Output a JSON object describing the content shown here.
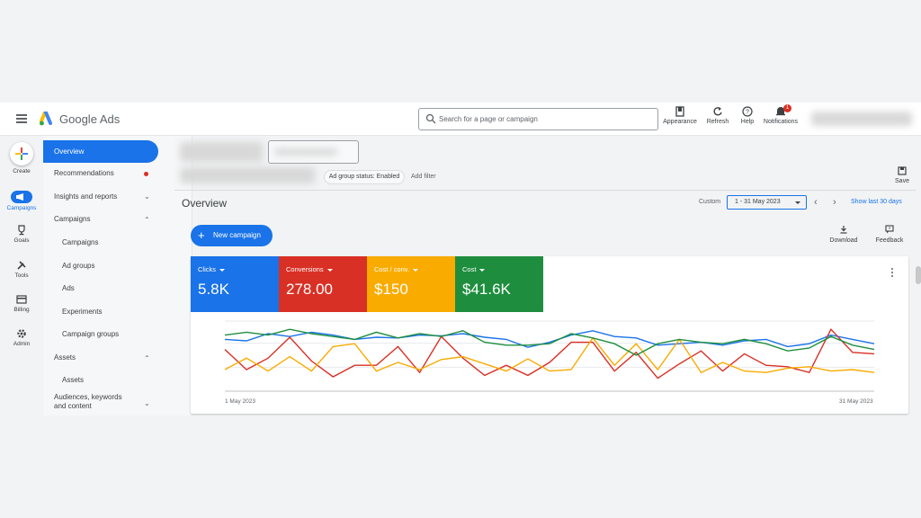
{
  "app": {
    "title": "Google Ads",
    "search_placeholder": "Search for a page or campaign"
  },
  "top_actions": [
    {
      "label": "Appearance",
      "icon": "appearance-icon"
    },
    {
      "label": "Refresh",
      "icon": "refresh-icon"
    },
    {
      "label": "Help",
      "icon": "help-icon"
    },
    {
      "label": "Notifications",
      "icon": "bell-icon",
      "badge": "1"
    }
  ],
  "rail": [
    {
      "label": "Create",
      "icon": "plus-icon"
    },
    {
      "label": "Campaigns",
      "icon": "megaphone-icon"
    },
    {
      "label": "Goals",
      "icon": "trophy-icon"
    },
    {
      "label": "Tools",
      "icon": "tools-icon"
    },
    {
      "label": "Billing",
      "icon": "card-icon"
    },
    {
      "label": "Admin",
      "icon": "gear-icon"
    }
  ],
  "nav": {
    "overview": "Overview",
    "recommendations": "Recommendations",
    "insights": "Insights and reports",
    "campaigns_section": "Campaigns",
    "campaigns": "Campaigns",
    "ad_groups": "Ad groups",
    "ads": "Ads",
    "experiments": "Experiments",
    "campaign_groups": "Campaign groups",
    "assets_section": "Assets",
    "assets": "Assets",
    "audiences": "Audiences, keywords and content"
  },
  "filters": {
    "chip": "Ad group status: Enabled",
    "add_filter": "Add filter",
    "save": "Save"
  },
  "overview": {
    "title": "Overview",
    "custom_label": "Custom",
    "date_range": "1 - 31 May 2023",
    "show_last": "Show last 30 days",
    "new_campaign": "New campaign",
    "download": "Download",
    "feedback": "Feedback"
  },
  "metrics": [
    {
      "label": "Clicks",
      "value": "5.8K",
      "color": "#1a73e8"
    },
    {
      "label": "Conversions",
      "value": "278.00",
      "color": "#d93025"
    },
    {
      "label": "Cost / conv.",
      "value": "$150",
      "color": "#f9ab00"
    },
    {
      "label": "Cost",
      "value": "$41.6K",
      "color": "#1e8e3e"
    }
  ],
  "chart_data": {
    "type": "line",
    "x_start_label": "1 May 2023",
    "x_end_label": "31 May 2023",
    "series": [
      {
        "name": "Clicks",
        "color": "#1a73e8",
        "values": [
          72,
          70,
          80,
          76,
          82,
          78,
          72,
          75,
          74,
          78,
          77,
          80,
          75,
          72,
          61,
          68,
          78,
          84,
          76,
          74,
          64,
          66,
          68,
          64,
          70,
          72,
          62,
          66,
          78,
          72,
          66
        ]
      },
      {
        "name": "Conversions",
        "color": "#d93025",
        "values": [
          58,
          30,
          46,
          75,
          42,
          20,
          36,
          36,
          62,
          26,
          76,
          46,
          22,
          36,
          22,
          40,
          68,
          68,
          28,
          54,
          18,
          38,
          56,
          28,
          52,
          36,
          34,
          26,
          86,
          54,
          52
        ]
      },
      {
        "name": "Cost / conv.",
        "color": "#f9ab00",
        "values": [
          30,
          46,
          28,
          48,
          28,
          62,
          66,
          28,
          40,
          30,
          44,
          48,
          38,
          28,
          45,
          28,
          30,
          74,
          36,
          66,
          30,
          72,
          26,
          40,
          28,
          26,
          32,
          34,
          28,
          30,
          26
        ]
      },
      {
        "name": "Cost",
        "color": "#1e8e3e",
        "values": [
          78,
          82,
          78,
          86,
          80,
          76,
          72,
          82,
          74,
          80,
          76,
          84,
          68,
          64,
          64,
          66,
          80,
          74,
          66,
          50,
          66,
          72,
          68,
          66,
          72,
          66,
          56,
          60,
          76,
          64,
          58
        ]
      }
    ]
  }
}
